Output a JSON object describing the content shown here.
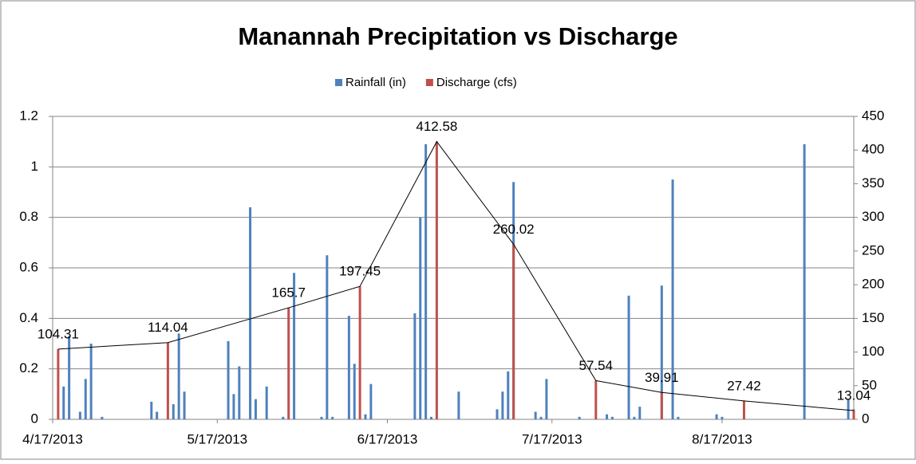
{
  "chart_data": {
    "type": "bar",
    "title": "Manannah Precipitation vs Discharge",
    "xlim": [
      "4/17/2013",
      "9/10/2013"
    ],
    "xticks": [
      "4/17/2013",
      "5/17/2013",
      "6/17/2013",
      "7/17/2013",
      "8/17/2013"
    ],
    "ylim": [
      0,
      1.2
    ],
    "yticks": [
      0,
      0.2,
      0.4,
      0.6,
      0.8,
      1,
      1.2
    ],
    "y2lim": [
      0,
      450
    ],
    "y2ticks": [
      0,
      50,
      100,
      150,
      200,
      250,
      300,
      350,
      400,
      450
    ],
    "grid": true,
    "legend": "top",
    "line_color": "#000000",
    "series": [
      {
        "name": "Rainfall (in)",
        "color": "#4f81bd",
        "x": [
          "4/19/2013",
          "4/20/2013",
          "4/22/2013",
          "4/23/2013",
          "4/24/2013",
          "4/26/2013",
          "5/5/2013",
          "5/6/2013",
          "5/9/2013",
          "5/10/2013",
          "5/11/2013",
          "5/19/2013",
          "5/20/2013",
          "5/21/2013",
          "5/23/2013",
          "5/24/2013",
          "5/26/2013",
          "5/29/2013",
          "5/31/2013",
          "6/5/2013",
          "6/6/2013",
          "6/7/2013",
          "6/10/2013",
          "6/11/2013",
          "6/13/2013",
          "6/14/2013",
          "6/22/2013",
          "6/23/2013",
          "6/24/2013",
          "6/25/2013",
          "6/30/2013",
          "7/7/2013",
          "7/8/2013",
          "7/9/2013",
          "7/10/2013",
          "7/14/2013",
          "7/15/2013",
          "7/16/2013",
          "7/22/2013",
          "7/27/2013",
          "7/28/2013",
          "7/31/2013",
          "8/1/2013",
          "8/2/2013",
          "8/6/2013",
          "8/8/2013",
          "8/9/2013",
          "8/16/2013",
          "8/17/2013",
          "9/1/2013",
          "9/9/2013",
          "9/10/2013"
        ],
        "values": [
          0.13,
          0.33,
          0.03,
          0.16,
          0.3,
          0.01,
          0.07,
          0.03,
          0.06,
          0.34,
          0.11,
          0.31,
          0.1,
          0.21,
          0.84,
          0.08,
          0.13,
          0.01,
          0.58,
          0.01,
          0.65,
          0.01,
          0.41,
          0.22,
          0.02,
          0.14,
          0.42,
          0.8,
          1.09,
          0.01,
          0.11,
          0.04,
          0.11,
          0.19,
          0.94,
          0.03,
          0.01,
          0.16,
          0.01,
          0.02,
          0.01,
          0.49,
          0.01,
          0.05,
          0.53,
          0.95,
          0.01,
          0.02,
          0.01,
          1.09,
          0.08,
          0.04
        ]
      },
      {
        "name": "Discharge (cfs)",
        "color": "#c0504d",
        "axis": "y2",
        "x": [
          "4/18/2013",
          "5/8/2013",
          "5/30/2013",
          "6/12/2013",
          "6/26/2013",
          "7/10/2013",
          "7/25/2013",
          "8/6/2013",
          "8/21/2013",
          "9/10/2013"
        ],
        "values": [
          104.31,
          114.04,
          165.7,
          197.45,
          412.58,
          260.02,
          57.54,
          39.91,
          27.42,
          13.04
        ]
      }
    ]
  }
}
